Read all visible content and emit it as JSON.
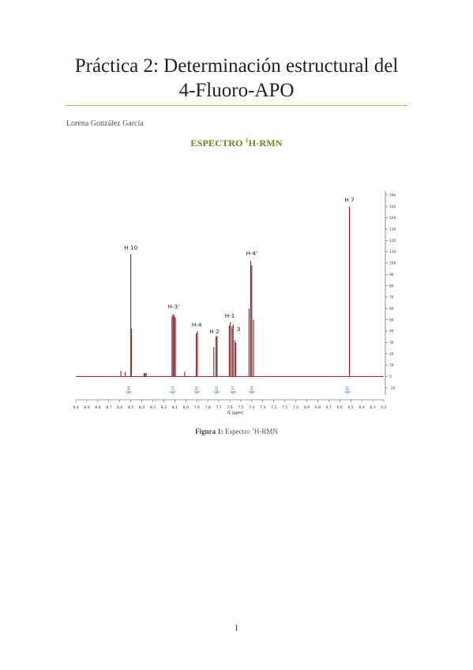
{
  "document": {
    "title_line1": "Práctica 2: Determinación estructural del",
    "title_line2": "4-Fluoro-APO",
    "author": "Lorena González García",
    "section_heading_pre": "ESPECTRO ",
    "section_heading_sup": "1",
    "section_heading_post": "H-RMN",
    "caption_label": "Figura 1:",
    "caption_text_pre": " Espectro ",
    "caption_sup": "1",
    "caption_text_post": "H-RMN",
    "page_number": "1"
  },
  "chart_data": {
    "type": "line",
    "xlabel": "f1 (ppm)",
    "xlim": [
      9.0,
      6.2
    ],
    "ylim": [
      -15,
      162
    ],
    "x_ticks": [
      "9.0",
      "8.9",
      "8.8",
      "8.7",
      "8.6",
      "8.5",
      "8.4",
      "8.3",
      "8.2",
      "8.1",
      "8.0",
      "7.9",
      "7.8",
      "7.7",
      "7.6",
      "7.5",
      "7.4",
      "7.3",
      "7.2",
      "7.1",
      "7.0",
      "6.9",
      "6.8",
      "6.7",
      "6.6",
      "6.5",
      "6.4",
      "6.3",
      "6.2"
    ],
    "y_ticks": [
      -10,
      0,
      10,
      20,
      30,
      40,
      50,
      60,
      70,
      80,
      90,
      100,
      110,
      120,
      130,
      140,
      150,
      160
    ],
    "colors": {
      "spectrum": "#8b1a1a",
      "integral": "#3a6fb0",
      "axis": "#444444"
    },
    "peaks": [
      {
        "x": 8.59,
        "h": 5
      },
      {
        "x": 8.55,
        "h": 4
      },
      {
        "x": 8.5,
        "h": 108
      },
      {
        "x": 8.495,
        "h": 42
      },
      {
        "x": 8.38,
        "h": 3
      },
      {
        "x": 8.37,
        "h": 3
      },
      {
        "x": 8.36,
        "h": 3
      },
      {
        "x": 8.125,
        "h": 53
      },
      {
        "x": 8.115,
        "h": 55
      },
      {
        "x": 8.105,
        "h": 54
      },
      {
        "x": 8.095,
        "h": 52
      },
      {
        "x": 8.01,
        "h": 4
      },
      {
        "x": 7.905,
        "h": 38
      },
      {
        "x": 7.895,
        "h": 40
      },
      {
        "x": 7.745,
        "h": 26
      },
      {
        "x": 7.725,
        "h": 35
      },
      {
        "x": 7.715,
        "h": 36
      },
      {
        "x": 7.605,
        "h": 45
      },
      {
        "x": 7.595,
        "h": 48
      },
      {
        "x": 7.58,
        "h": 44
      },
      {
        "x": 7.57,
        "h": 46
      },
      {
        "x": 7.555,
        "h": 32
      },
      {
        "x": 7.545,
        "h": 30
      },
      {
        "x": 7.425,
        "h": 60
      },
      {
        "x": 7.41,
        "h": 102
      },
      {
        "x": 7.4,
        "h": 98
      },
      {
        "x": 7.385,
        "h": 50
      },
      {
        "x": 6.512,
        "h": 150
      }
    ],
    "integrals": [
      {
        "x": 8.52,
        "label": "1.06"
      },
      {
        "x": 8.12,
        "label": "2.14"
      },
      {
        "x": 7.9,
        "label": "1.09"
      },
      {
        "x": 7.72,
        "label": "1.02"
      },
      {
        "x": 7.57,
        "label": "2.30"
      },
      {
        "x": 7.4,
        "label": "2.04"
      },
      {
        "x": 6.53,
        "label": "1.00"
      }
    ],
    "annotations": [
      {
        "x": 8.5,
        "y": 112,
        "text": "H 10"
      },
      {
        "x": 8.11,
        "y": 60,
        "text": "H-3'"
      },
      {
        "x": 7.9,
        "y": 44,
        "text": "H-4"
      },
      {
        "x": 7.74,
        "y": 38,
        "text": "H 2"
      },
      {
        "x": 7.6,
        "y": 52,
        "text": "H-1"
      },
      {
        "x": 7.52,
        "y": 40,
        "text": "3"
      },
      {
        "x": 7.4,
        "y": 107,
        "text": "H-4'"
      },
      {
        "x": 6.512,
        "y": 154,
        "text": "H 7"
      }
    ]
  }
}
